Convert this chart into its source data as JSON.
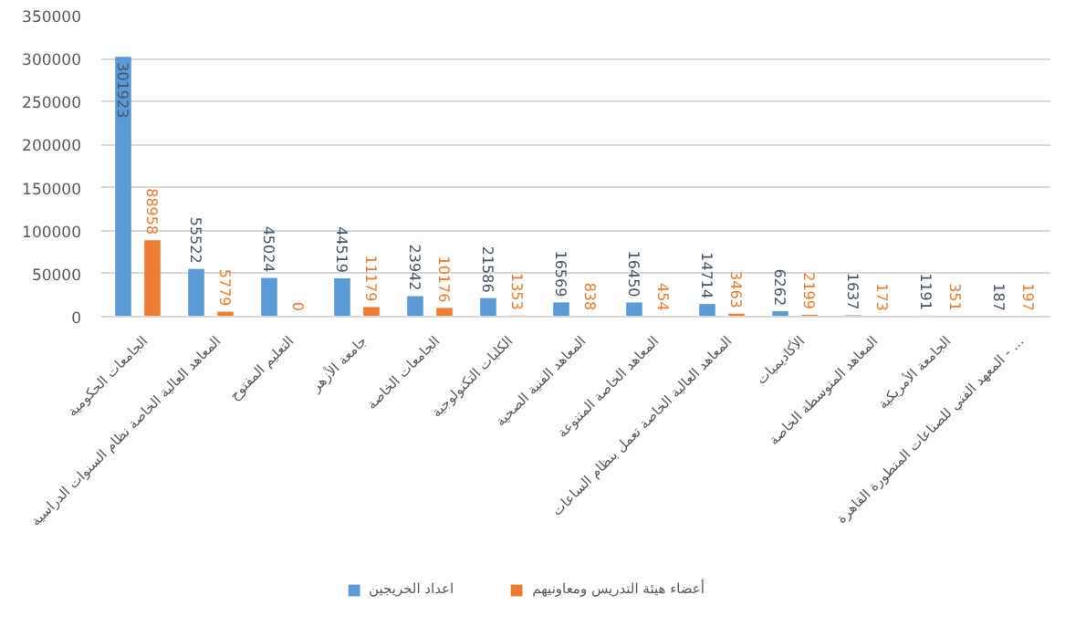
{
  "chart_data": {
    "type": "bar",
    "categories": [
      "الجامعات الحكومية",
      "المعاهد العالية الخاصة نظام السنوات الدراسية",
      "التعليم المفتوح",
      "جامعة الأزهر",
      "الجامعات الخاصة",
      "الكليات التكنولوجية",
      "المعاهد الفنية الصحية",
      "المعاهد الخاصة المتنوعة",
      "المعاهد العالية الخاصة تعمل بنظام الساعات",
      "الأكاديميات",
      "المعاهد المتوسطة الخاصة",
      "الجامعة الأمريكية",
      "المعهد الفني للصناعات المتطورة القاهرة - ..."
    ],
    "series": [
      {
        "name": "اعداد الخريجين",
        "color": "#5b9bd5",
        "values": [
          301923,
          55522,
          45024,
          44519,
          23942,
          21586,
          16569,
          16450,
          14714,
          6262,
          1637,
          1191,
          187
        ]
      },
      {
        "name": "أعضاء هيئة التدريس ومعاونيهم",
        "color": "#ed7d31",
        "values": [
          88958,
          5779,
          0,
          11179,
          10176,
          1353,
          838,
          454,
          3463,
          2199,
          173,
          351,
          197
        ]
      }
    ],
    "ylim": [
      0,
      350000
    ],
    "yticks": [
      0,
      50000,
      100000,
      150000,
      200000,
      250000,
      300000,
      350000
    ],
    "grid": "y",
    "legend": "bottom",
    "data_labels": true
  }
}
